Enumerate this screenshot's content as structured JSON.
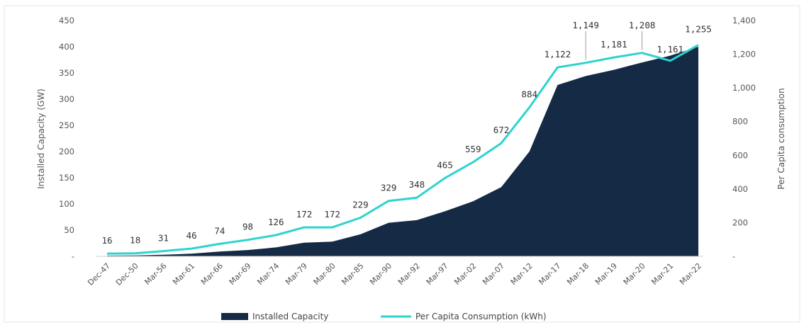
{
  "chart_data": {
    "type": "area+line",
    "title": "",
    "ylabel_left": "Installed Capacity (GW)",
    "ylabel_right": "Per Capita consumption",
    "ylim_left": [
      0,
      450
    ],
    "ylim_right": [
      0,
      1400
    ],
    "yticks_left": [
      "-",
      "50",
      "100",
      "150",
      "200",
      "250",
      "300",
      "350",
      "400",
      "450"
    ],
    "yticks_right": [
      "-",
      "200",
      "400",
      "600",
      "800",
      "1,000",
      "1,200",
      "1,400"
    ],
    "categories": [
      "Dec-47",
      "Dec-50",
      "Mar-56",
      "Mar-61",
      "Mar-66",
      "Mar-69",
      "Mar-74",
      "Mar-79",
      "Mar-80",
      "Mar-85",
      "Mar-90",
      "Mar-92",
      "Mar-97",
      "Mar-02",
      "Mar-07",
      "Mar-12",
      "Mar-17",
      "Mar-18",
      "Mar-19",
      "Mar-20",
      "Mar-21",
      "Mar-22"
    ],
    "series": [
      {
        "name": "Installed Capacity",
        "type": "area",
        "axis": "left",
        "color": "#152a45",
        "values": [
          1.4,
          1.7,
          3,
          5,
          9,
          12,
          17,
          26,
          28,
          42,
          64,
          69,
          86,
          105,
          132,
          200,
          327,
          344,
          356,
          370,
          383,
          400
        ]
      },
      {
        "name": "Per Capita Consumption (kWh)",
        "type": "line",
        "axis": "right",
        "color": "#2ed3d0",
        "values": [
          16,
          18,
          31,
          46,
          74,
          98,
          126,
          172,
          172,
          229,
          329,
          348,
          465,
          559,
          672,
          884,
          1122,
          1149,
          1181,
          1208,
          1161,
          1255
        ],
        "labels": [
          "16",
          "18",
          "31",
          "46",
          "74",
          "98",
          "126",
          "172",
          "172",
          "229",
          "329",
          "348",
          "465",
          "559",
          "672",
          "884",
          "1,122",
          "1,149",
          "1,181",
          "1,208",
          "1,161",
          "1,255"
        ]
      }
    ],
    "legend": {
      "position": "bottom-center"
    },
    "grid": false
  }
}
